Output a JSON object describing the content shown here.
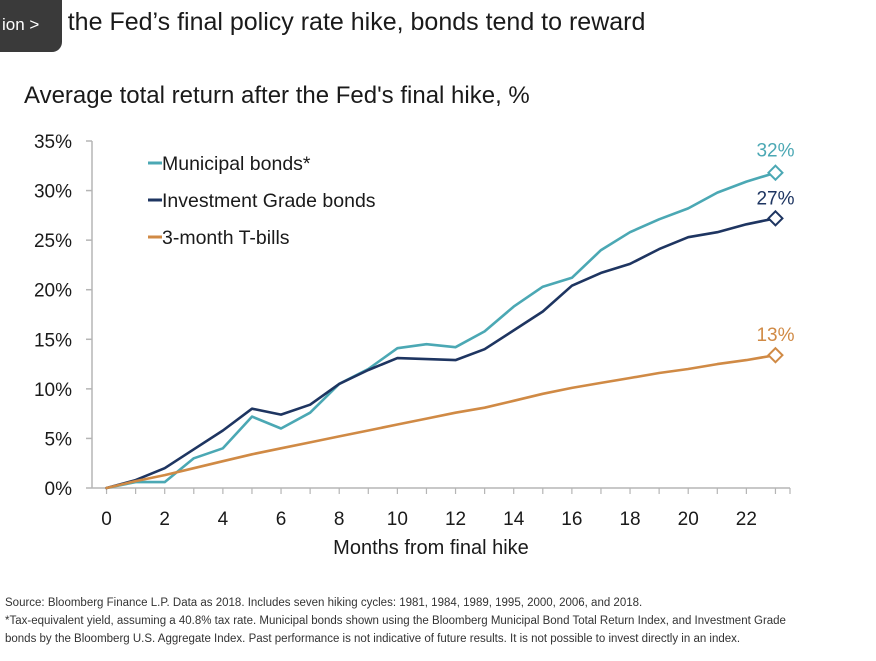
{
  "nav": {
    "label": "ion >"
  },
  "headline": "After the Fed’s final policy rate hike, bonds tend to reward",
  "chart_data": {
    "type": "line",
    "title": "Average total return after the Fed's final hike, %",
    "xlabel": "Months from final hike",
    "ylabel": "",
    "xlim": [
      -0.5,
      23.5
    ],
    "ylim": [
      0,
      35
    ],
    "x_ticks": [
      0,
      2,
      4,
      6,
      8,
      10,
      12,
      14,
      16,
      18,
      20,
      22
    ],
    "y_ticks": [
      0,
      5,
      10,
      15,
      20,
      25,
      30,
      35
    ],
    "y_tick_labels": [
      "0%",
      "5%",
      "10%",
      "15%",
      "20%",
      "25%",
      "30%",
      "35%"
    ],
    "grid": false,
    "legend_position": "top-left",
    "x": [
      0,
      1,
      2,
      3,
      4,
      5,
      6,
      7,
      8,
      9,
      10,
      11,
      12,
      13,
      14,
      15,
      16,
      17,
      18,
      19,
      20,
      21,
      22,
      23
    ],
    "series": [
      {
        "name": "Municipal bonds*",
        "color": "#4ba8b4",
        "values": [
          0,
          0.6,
          0.6,
          3.0,
          4.0,
          7.2,
          6.0,
          7.6,
          10.5,
          12.0,
          14.1,
          14.5,
          14.2,
          15.8,
          18.3,
          20.3,
          21.2,
          24.0,
          25.8,
          27.1,
          28.2,
          29.8,
          30.9,
          31.8
        ],
        "end_label": "32%"
      },
      {
        "name": "Investment Grade bonds",
        "color": "#1e3561",
        "values": [
          0,
          0.8,
          2.0,
          3.9,
          5.8,
          8.0,
          7.4,
          8.4,
          10.5,
          11.9,
          13.1,
          13.0,
          12.9,
          14.0,
          15.9,
          17.8,
          20.4,
          21.7,
          22.6,
          24.1,
          25.3,
          25.8,
          26.6,
          27.2
        ],
        "end_label": "27%"
      },
      {
        "name": "3-month T-bills",
        "color": "#d08a45",
        "values": [
          0,
          0.7,
          1.3,
          2.0,
          2.7,
          3.4,
          4.0,
          4.6,
          5.2,
          5.8,
          6.4,
          7.0,
          7.6,
          8.1,
          8.8,
          9.5,
          10.1,
          10.6,
          11.1,
          11.6,
          12.0,
          12.5,
          12.9,
          13.4
        ],
        "end_label": "13%"
      }
    ]
  },
  "footnotes": {
    "source": "Source: Bloomberg Finance L.P. Data as 2018. Includes seven hiking cycles: 1981, 1984, 1989, 1995, 2000, 2006, and 2018.",
    "tax_line1": "*Tax-equivalent yield, assuming a 40.8% tax rate. Municipal bonds shown using the Bloomberg Municipal Bond Total Return Index, and Investment Grade",
    "tax_line2": "bonds by the Bloomberg U.S. Aggregate Index. Past performance is not indicative of future results. It is not possible to invest directly in an index."
  }
}
